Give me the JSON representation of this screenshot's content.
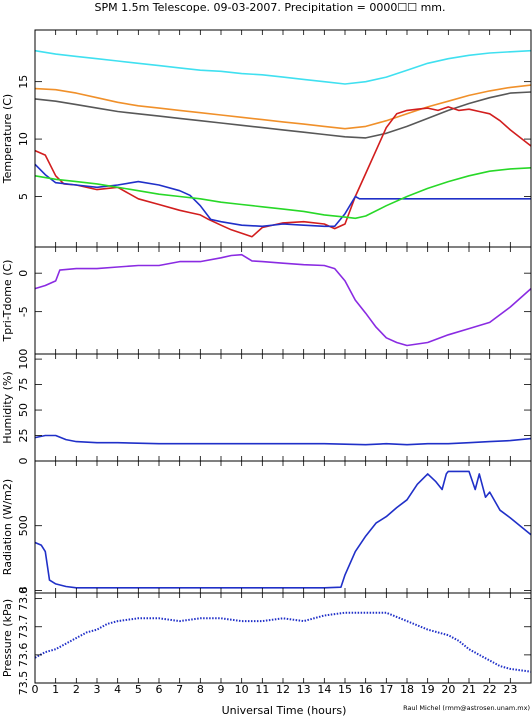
{
  "chart_data": {
    "type": "line",
    "title": "SPM 1.5m Telescope. 09-03-2007. Precipitation = 0000☐☐ mm.",
    "xlabel": "Universal Time (hours)",
    "credit": "Raul Michel (rmm@astrosen.unam.mx)",
    "xlim": [
      0,
      24
    ],
    "xticks": [
      "0",
      "1",
      "2",
      "3",
      "4",
      "5",
      "6",
      "7",
      "8",
      "9",
      "10",
      "11",
      "12",
      "13",
      "14",
      "15",
      "16",
      "17",
      "18",
      "19",
      "20",
      "21",
      "22",
      "23"
    ],
    "panels": [
      {
        "id": "temperature",
        "ylabel": "Temperature (C)",
        "ylim": [
          0.6,
          19.5
        ],
        "yticks": [
          {
            "v": 5,
            "label": "5"
          },
          {
            "v": 10,
            "label": "10"
          },
          {
            "v": 15,
            "label": "15"
          }
        ],
        "series": [
          {
            "color": "#40e0f0",
            "x": [
              0,
              1,
              2,
              3,
              4,
              5,
              6,
              7,
              8,
              9,
              10,
              11,
              12,
              13,
              14,
              15,
              16,
              17,
              18,
              19,
              20,
              21,
              22,
              23,
              24
            ],
            "y": [
              17.7,
              17.4,
              17.2,
              17.0,
              16.8,
              16.6,
              16.4,
              16.2,
              16.0,
              15.9,
              15.7,
              15.6,
              15.4,
              15.2,
              15.0,
              14.8,
              15.0,
              15.4,
              16.0,
              16.6,
              17.0,
              17.3,
              17.5,
              17.6,
              17.7
            ]
          },
          {
            "color": "#f0902a",
            "x": [
              0,
              1,
              2,
              3,
              4,
              5,
              6,
              7,
              8,
              9,
              10,
              11,
              12,
              13,
              14,
              15,
              16,
              17,
              18,
              19,
              20,
              21,
              22,
              23,
              24
            ],
            "y": [
              14.4,
              14.3,
              14.0,
              13.6,
              13.2,
              12.9,
              12.7,
              12.5,
              12.3,
              12.1,
              11.9,
              11.7,
              11.5,
              11.3,
              11.1,
              10.9,
              11.1,
              11.6,
              12.2,
              12.8,
              13.3,
              13.8,
              14.2,
              14.5,
              14.7
            ]
          },
          {
            "color": "#585858",
            "x": [
              0,
              1,
              2,
              3,
              4,
              5,
              6,
              7,
              8,
              9,
              10,
              11,
              12,
              13,
              14,
              15,
              16,
              17,
              18,
              19,
              20,
              21,
              22,
              23,
              24
            ],
            "y": [
              13.5,
              13.3,
              13.0,
              12.7,
              12.4,
              12.2,
              12.0,
              11.8,
              11.6,
              11.4,
              11.2,
              11.0,
              10.8,
              10.6,
              10.4,
              10.2,
              10.1,
              10.5,
              11.1,
              11.8,
              12.5,
              13.1,
              13.6,
              14.0,
              14.1
            ]
          },
          {
            "color": "#d21e1e",
            "x": [
              0,
              0.5,
              1,
              1.4,
              2,
              3,
              4,
              5,
              6,
              7,
              7.5,
              8,
              8.4,
              9,
              9.5,
              10,
              10.5,
              11,
              12,
              13,
              14,
              14.5,
              15,
              15.5,
              16,
              16.5,
              17,
              17.5,
              18,
              18.5,
              19,
              19.5,
              20,
              20.5,
              21,
              21.5,
              22,
              22.5,
              23,
              24
            ],
            "y": [
              9.0,
              8.6,
              6.8,
              6.1,
              6.0,
              5.6,
              5.8,
              4.8,
              4.3,
              3.8,
              3.6,
              3.4,
              3.0,
              2.5,
              2.1,
              1.8,
              1.5,
              2.3,
              2.7,
              2.8,
              2.6,
              2.2,
              2.6,
              5.0,
              7.0,
              9.0,
              11.0,
              12.2,
              12.5,
              12.6,
              12.7,
              12.5,
              12.8,
              12.5,
              12.6,
              12.4,
              12.2,
              11.6,
              10.8,
              9.4
            ]
          },
          {
            "color": "#2030c8",
            "x": [
              0,
              0.5,
              1,
              2,
              3,
              4,
              5,
              6,
              7,
              7.5,
              8,
              8.5,
              9,
              10,
              11,
              12,
              13,
              14,
              14.5,
              15,
              15.5,
              15.7,
              16,
              17,
              18,
              19,
              20,
              21,
              22,
              23,
              24
            ],
            "y": [
              7.8,
              6.9,
              6.2,
              6.0,
              5.8,
              6.0,
              6.3,
              6.0,
              5.5,
              5.1,
              4.2,
              3.0,
              2.8,
              2.5,
              2.4,
              2.6,
              2.5,
              2.4,
              2.4,
              3.5,
              5.0,
              4.8,
              4.8,
              4.8,
              4.8,
              4.8,
              4.8,
              4.8,
              4.8,
              4.8,
              4.8
            ]
          },
          {
            "color": "#28d828",
            "x": [
              0,
              1,
              2,
              3,
              4,
              5,
              6,
              7,
              8,
              9,
              10,
              11,
              12,
              13,
              14,
              15,
              15.5,
              16,
              17,
              18,
              19,
              20,
              21,
              22,
              23,
              24
            ],
            "y": [
              6.8,
              6.5,
              6.3,
              6.1,
              5.8,
              5.5,
              5.2,
              5.0,
              4.8,
              4.5,
              4.3,
              4.1,
              3.9,
              3.7,
              3.4,
              3.2,
              3.1,
              3.3,
              4.2,
              5.0,
              5.7,
              6.3,
              6.8,
              7.2,
              7.4,
              7.5
            ]
          }
        ]
      },
      {
        "id": "tdiff",
        "ylabel": "Tpri-Tdome (C)",
        "ylim": [
          -10.5,
          3.4
        ],
        "yticks": [
          {
            "v": 0,
            "label": "0"
          },
          {
            "v": -5,
            "label": "-5"
          }
        ],
        "series": [
          {
            "color": "#8a2be2",
            "x": [
              0,
              0.5,
              1,
              1.2,
              2,
              3,
              4,
              5,
              6,
              7,
              8,
              9,
              9.5,
              10,
              10.5,
              11,
              12,
              13,
              14,
              14.5,
              15,
              15.5,
              16,
              16.5,
              17,
              17.5,
              18,
              19,
              20,
              21,
              22,
              23,
              24
            ],
            "y": [
              -2.0,
              -1.6,
              -1.0,
              0.4,
              0.6,
              0.6,
              0.8,
              1.0,
              1.0,
              1.5,
              1.5,
              2.0,
              2.3,
              2.4,
              1.6,
              1.5,
              1.3,
              1.1,
              1.0,
              0.6,
              -1.0,
              -3.5,
              -5.2,
              -7.0,
              -8.4,
              -9.0,
              -9.4,
              -9.0,
              -8.0,
              -7.2,
              -6.4,
              -4.4,
              -2.0
            ]
          }
        ]
      },
      {
        "id": "humidity",
        "ylabel": "Humidity (%)",
        "ylim": [
          0,
          105
        ],
        "yticks": [
          {
            "v": 0,
            "label": "0"
          },
          {
            "v": 25,
            "label": "25"
          },
          {
            "v": 50,
            "label": "50"
          },
          {
            "v": 75,
            "label": "75"
          },
          {
            "v": 100,
            "label": "100"
          }
        ],
        "series": [
          {
            "color": "#2030c8",
            "x": [
              0,
              0.5,
              1,
              1.5,
              2,
              3,
              4,
              6,
              8,
              10,
              12,
              14,
              16,
              17,
              18,
              19,
              20,
              21,
              22,
              23,
              24
            ],
            "y": [
              23,
              25,
              25,
              21,
              19,
              18,
              18,
              17,
              17,
              17,
              17,
              17,
              16,
              17,
              16,
              17,
              17,
              18,
              19,
              20,
              22
            ]
          }
        ]
      },
      {
        "id": "radiation",
        "ylabel": "Radiation (W/m2)",
        "ylim": [
          -20,
          1000
        ],
        "yticks": [
          {
            "v": 0,
            "label": "0"
          },
          {
            "v": 500,
            "label": "500"
          }
        ],
        "series": [
          {
            "color": "#2030c8",
            "x": [
              0,
              0.3,
              0.5,
              0.7,
              1,
              1.5,
              2,
              4,
              6,
              8,
              10,
              12,
              14,
              14.8,
              15,
              15.5,
              16,
              16.5,
              17,
              17.5,
              18,
              18.5,
              19,
              19.4,
              19.7,
              19.9,
              20,
              20.5,
              21,
              21.3,
              21.5,
              21.8,
              22,
              22.5,
              23,
              24
            ],
            "y": [
              370,
              350,
              300,
              80,
              50,
              30,
              20,
              20,
              20,
              20,
              20,
              20,
              20,
              25,
              120,
              300,
              420,
              520,
              570,
              640,
              700,
              820,
              900,
              840,
              780,
              900,
              920,
              920,
              920,
              780,
              900,
              720,
              760,
              620,
              560,
              430
            ]
          }
        ]
      },
      {
        "id": "pressure",
        "ylabel": "Pressure (kPa)",
        "ylim": [
          73.5,
          73.82
        ],
        "yticks": [
          {
            "v": 73.5,
            "label": "73.5"
          },
          {
            "v": 73.6,
            "label": "73.6"
          },
          {
            "v": 73.7,
            "label": "73.7"
          },
          {
            "v": 73.8,
            "label": "73.8"
          }
        ],
        "series": [
          {
            "color": "#2030c8",
            "x": [
              0,
              0.5,
              1,
              1.5,
              2,
              2.5,
              3,
              3.5,
              4,
              5,
              6,
              7,
              8,
              9,
              10,
              11,
              12,
              13,
              14,
              15,
              16,
              17,
              18,
              19,
              20,
              20.5,
              21,
              21.5,
              22,
              22.5,
              23,
              24
            ],
            "y": [
              73.59,
              73.61,
              73.62,
              73.64,
              73.66,
              73.68,
              73.69,
              73.71,
              73.72,
              73.73,
              73.73,
              73.72,
              73.73,
              73.73,
              73.72,
              73.72,
              73.73,
              73.72,
              73.74,
              73.75,
              73.75,
              73.75,
              73.72,
              73.69,
              73.67,
              73.65,
              73.62,
              73.6,
              73.58,
              73.56,
              73.55,
              73.54
            ]
          }
        ]
      }
    ]
  }
}
